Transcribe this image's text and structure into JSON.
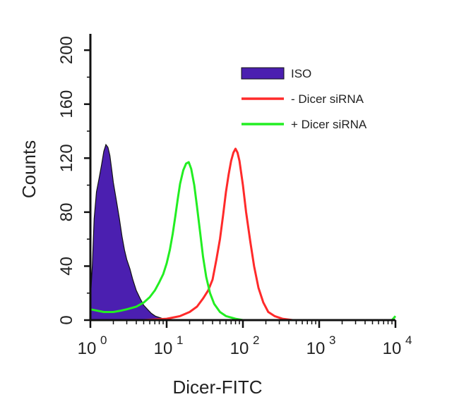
{
  "chart_data": {
    "type": "histogram",
    "xlabel": "Dicer-FITC",
    "ylabel": "Counts",
    "x_scale": "log",
    "x_range": [
      1,
      10000
    ],
    "y_range": [
      0,
      210
    ],
    "x_ticks": [
      {
        "base": "10",
        "exp": "0",
        "value": 1
      },
      {
        "base": "10",
        "exp": "1",
        "value": 10
      },
      {
        "base": "10",
        "exp": "2",
        "value": 100
      },
      {
        "base": "10",
        "exp": "3",
        "value": 1000
      },
      {
        "base": "10",
        "exp": "4",
        "value": 10000
      }
    ],
    "y_ticks": [
      {
        "label": "0",
        "value": 0
      },
      {
        "label": "40",
        "value": 40
      },
      {
        "label": "80",
        "value": 80
      },
      {
        "label": "120",
        "value": 120
      },
      {
        "label": "160",
        "value": 160
      },
      {
        "label": "200",
        "value": 200
      }
    ],
    "legend_position": "top-right",
    "series": [
      {
        "name": "ISO",
        "style": "filled",
        "color": "#4b1fb0",
        "points": [
          [
            1.0,
            15
          ],
          [
            1.06,
            40
          ],
          [
            1.12,
            75
          ],
          [
            1.2,
            95
          ],
          [
            1.3,
            105
          ],
          [
            1.4,
            115
          ],
          [
            1.5,
            125
          ],
          [
            1.6,
            130
          ],
          [
            1.7,
            128
          ],
          [
            1.8,
            122
          ],
          [
            1.9,
            112
          ],
          [
            2.0,
            102
          ],
          [
            2.2,
            88
          ],
          [
            2.4,
            75
          ],
          [
            2.6,
            62
          ],
          [
            2.8,
            52
          ],
          [
            3.0,
            45
          ],
          [
            3.3,
            38
          ],
          [
            3.6,
            30
          ],
          [
            4.0,
            22
          ],
          [
            4.5,
            16
          ],
          [
            5.0,
            11
          ],
          [
            5.6,
            8
          ],
          [
            6.3,
            5
          ],
          [
            7.1,
            3
          ],
          [
            8.0,
            2
          ],
          [
            9.0,
            1
          ],
          [
            10.0,
            0.5
          ],
          [
            12.0,
            0
          ]
        ]
      },
      {
        "name": "- Dicer siRNA",
        "style": "line",
        "color": "#ff2a2a",
        "points": [
          [
            1.0,
            0
          ],
          [
            5.0,
            0
          ],
          [
            10.0,
            1
          ],
          [
            15.0,
            3
          ],
          [
            20.0,
            6
          ],
          [
            25.0,
            10
          ],
          [
            30.0,
            16
          ],
          [
            35.0,
            22
          ],
          [
            40.0,
            30
          ],
          [
            45.0,
            45
          ],
          [
            50.0,
            60
          ],
          [
            55.0,
            78
          ],
          [
            60.0,
            95
          ],
          [
            65.0,
            108
          ],
          [
            70.0,
            118
          ],
          [
            75.0,
            124
          ],
          [
            80.0,
            127
          ],
          [
            85.0,
            124
          ],
          [
            90.0,
            118
          ],
          [
            100.0,
            100
          ],
          [
            110.0,
            80
          ],
          [
            125.0,
            58
          ],
          [
            140.0,
            40
          ],
          [
            160.0,
            24
          ],
          [
            185.0,
            13
          ],
          [
            215.0,
            6
          ],
          [
            260.0,
            3
          ],
          [
            330.0,
            1
          ],
          [
            450.0,
            0
          ],
          [
            10000.0,
            0
          ]
        ]
      },
      {
        "name": "+ Dicer siRNA",
        "style": "line",
        "color": "#22ee22",
        "points": [
          [
            1.0,
            8
          ],
          [
            1.5,
            6
          ],
          [
            2.0,
            6
          ],
          [
            2.5,
            7
          ],
          [
            3.0,
            8
          ],
          [
            4.0,
            10
          ],
          [
            5.0,
            13
          ],
          [
            6.0,
            17
          ],
          [
            7.0,
            22
          ],
          [
            8.0,
            28
          ],
          [
            9.0,
            34
          ],
          [
            10.0,
            42
          ],
          [
            11.0,
            52
          ],
          [
            12.0,
            64
          ],
          [
            13.0,
            77
          ],
          [
            14.0,
            90
          ],
          [
            15.0,
            101
          ],
          [
            16.5,
            111
          ],
          [
            18.0,
            116
          ],
          [
            19.5,
            117
          ],
          [
            21.0,
            112
          ],
          [
            23.0,
            100
          ],
          [
            25.0,
            84
          ],
          [
            27.5,
            65
          ],
          [
            30.0,
            47
          ],
          [
            33.0,
            32
          ],
          [
            37.0,
            20
          ],
          [
            42.0,
            12
          ],
          [
            50.0,
            6
          ],
          [
            60.0,
            3
          ],
          [
            80.0,
            1
          ],
          [
            100.0,
            0
          ],
          [
            9000.0,
            0
          ],
          [
            10000.0,
            3
          ]
        ]
      }
    ]
  }
}
